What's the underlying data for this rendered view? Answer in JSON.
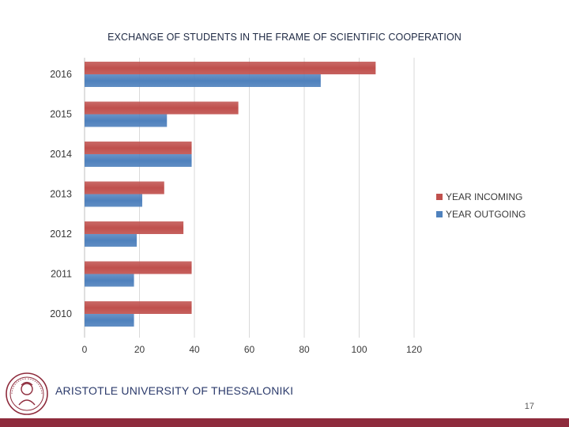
{
  "colors": {
    "incoming": "#c0504d",
    "outgoing": "#4f81bd",
    "accent_bar": "#8e2b3c",
    "gridline": "#d9d9d9"
  },
  "chart_data": {
    "type": "bar",
    "orientation": "horizontal",
    "title": "EXCHANGE OF STUDENTS IN THE FRAME OF SCIENTIFIC COOPERATION",
    "categories": [
      "2016",
      "2015",
      "2014",
      "2013",
      "2012",
      "2011",
      "2010"
    ],
    "series": [
      {
        "name": "YEAR INCOMING",
        "values": [
          106,
          56,
          39,
          29,
          36,
          39,
          39
        ]
      },
      {
        "name": "YEAR OUTGOING",
        "values": [
          86,
          30,
          39,
          21,
          19,
          18,
          18
        ]
      }
    ],
    "xlim": [
      0,
      120
    ],
    "xticks": [
      "0",
      "20",
      "40",
      "60",
      "80",
      "100",
      "120"
    ],
    "grid": "vertical",
    "legend": "right"
  },
  "footer": {
    "university": "ARISTOTLE UNIVERSITY OF THESSALONIKI",
    "page_number": "17",
    "logo_icon": "university-seal-icon"
  }
}
